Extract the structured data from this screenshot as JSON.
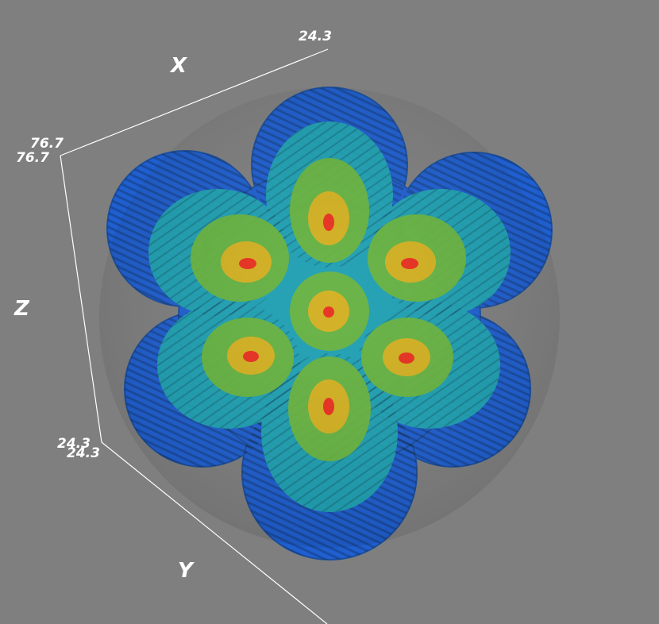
{
  "axes": {
    "x": {
      "label": "X",
      "tick_end": "24.3",
      "tick_start": "76.7"
    },
    "y": {
      "label": "Y",
      "tick_start": "24.3"
    },
    "z": {
      "label": "Z",
      "tick_top": "76.7",
      "tick_bottom": "24.3"
    }
  },
  "colors": {
    "background": "#7f7f7f",
    "outer_shell": "#1f5fd0",
    "mid_shell": "#1fa8b0",
    "inner_shell": "#88c030",
    "core_shell": "#d8b020",
    "peak": "#e83020",
    "axis_line": "#ffffff"
  }
}
